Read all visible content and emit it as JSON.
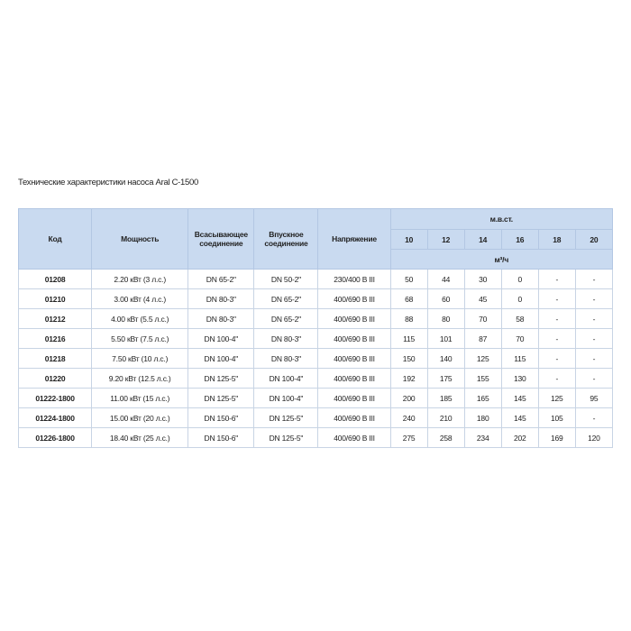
{
  "caption": "Технические характеристики насоса Aral C-1500",
  "table": {
    "headers": {
      "code": "Код",
      "power": "Мощность",
      "suction": "Всасывающее соединение",
      "inlet": "Впускное соединение",
      "voltage": "Напряжение",
      "head_group": "м.в.ст.",
      "heads": [
        "10",
        "12",
        "14",
        "16",
        "18",
        "20"
      ],
      "flow_unit": "м³/ч"
    },
    "rows": [
      {
        "code": "01208",
        "power": "2.20 кВт (3 л.с.)",
        "suction": "DN 65-2\"",
        "inlet": "DN 50-2\"",
        "voltage": "230/400 В III",
        "flows": [
          "50",
          "44",
          "30",
          "0",
          "-",
          "-"
        ]
      },
      {
        "code": "01210",
        "power": "3.00 кВт (4 л.с.)",
        "suction": "DN 80-3\"",
        "inlet": "DN 65-2\"",
        "voltage": "400/690 В III",
        "flows": [
          "68",
          "60",
          "45",
          "0",
          "-",
          "-"
        ]
      },
      {
        "code": "01212",
        "power": "4.00 кВт (5.5 л.с.)",
        "suction": "DN 80-3\"",
        "inlet": "DN 65-2\"",
        "voltage": "400/690 В III",
        "flows": [
          "88",
          "80",
          "70",
          "58",
          "-",
          "-"
        ]
      },
      {
        "code": "01216",
        "power": "5.50 кВт (7.5 л.с.)",
        "suction": "DN 100-4\"",
        "inlet": "DN 80-3\"",
        "voltage": "400/690 В III",
        "flows": [
          "115",
          "101",
          "87",
          "70",
          "-",
          "-"
        ]
      },
      {
        "code": "01218",
        "power": "7.50 кВт (10 л.с.)",
        "suction": "DN 100-4\"",
        "inlet": "DN 80-3\"",
        "voltage": "400/690 В III",
        "flows": [
          "150",
          "140",
          "125",
          "115",
          "-",
          "-"
        ]
      },
      {
        "code": "01220",
        "power": "9.20 кВт (12.5 л.с.)",
        "suction": "DN 125-5\"",
        "inlet": "DN 100-4\"",
        "voltage": "400/690 В III",
        "flows": [
          "192",
          "175",
          "155",
          "130",
          "-",
          "-"
        ]
      },
      {
        "code": "01222-1800",
        "power": "11.00 кВт (15 л.с.)",
        "suction": "DN 125-5\"",
        "inlet": "DN 100-4\"",
        "voltage": "400/690 В III",
        "flows": [
          "200",
          "185",
          "165",
          "145",
          "125",
          "95"
        ]
      },
      {
        "code": "01224-1800",
        "power": "15.00 кВт (20 л.с.)",
        "suction": "DN 150-6\"",
        "inlet": "DN 125-5\"",
        "voltage": "400/690 В III",
        "flows": [
          "240",
          "210",
          "180",
          "145",
          "105",
          "-"
        ]
      },
      {
        "code": "01226-1800",
        "power": "18.40 кВт (25 л.с.)",
        "suction": "DN 150-6\"",
        "inlet": "DN 125-5\"",
        "voltage": "400/690 В III",
        "flows": [
          "275",
          "258",
          "234",
          "202",
          "169",
          "120"
        ]
      }
    ]
  },
  "colors": {
    "header_bg": "#c9daf0",
    "border": "#9fb6d4"
  }
}
